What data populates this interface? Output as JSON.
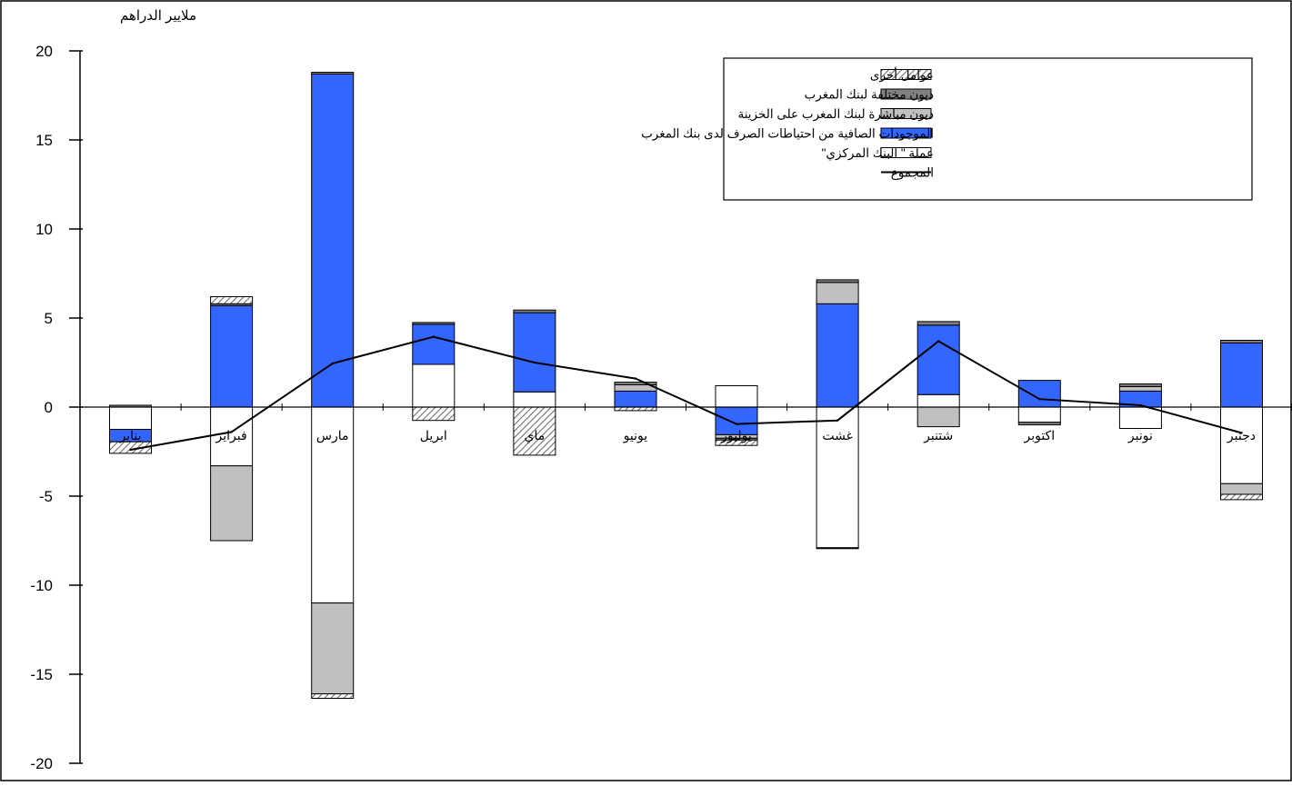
{
  "chart_data": {
    "type": "bar",
    "stacked": true,
    "ylabel": "ملايير الدراهم",
    "ylim": [
      -20,
      20
    ],
    "yticks": [
      20,
      15,
      10,
      5,
      0,
      -5,
      -10,
      -15,
      -20
    ],
    "ytick_labels": [
      "20",
      "15",
      "10",
      "5",
      "0",
      "-5",
      "-10",
      "-15",
      "-20"
    ],
    "categories": [
      "يناير",
      "فبراير",
      "مارس",
      "ابريل",
      "ماي",
      "يونيو",
      "يوليوز",
      "غشت",
      "شتنبر",
      "اكتوبر",
      "نونبر",
      "دجنبر"
    ],
    "series": [
      {
        "name": "عملة \" البنك المركزي\"",
        "kind": "bar",
        "color": "#ffffff",
        "pattern": "none",
        "values": [
          -1.25,
          -3.3,
          -11.0,
          2.4,
          0.85,
          0.0,
          1.2,
          -7.9,
          0.7,
          -0.85,
          -1.2,
          -4.3
        ]
      },
      {
        "name": "الموجودات الصافية من احتياطات الصرف لدى بنك المغرب",
        "kind": "bar",
        "color": "#3366ff",
        "pattern": "none",
        "values": [
          -0.7,
          5.7,
          18.7,
          2.25,
          4.45,
          0.9,
          -1.55,
          5.8,
          3.9,
          1.5,
          0.9,
          3.6
        ]
      },
      {
        "name": "ديون مباشرة لبنك المغرب على الخزينة",
        "kind": "bar",
        "color": "#c0c0c0",
        "pattern": "none",
        "values": [
          0.0,
          -4.2,
          -5.1,
          0.0,
          0.0,
          0.35,
          -0.2,
          1.2,
          -1.1,
          0.0,
          0.25,
          -0.6
        ]
      },
      {
        "name": "ديون مختلفة لبنك المغرب",
        "kind": "bar",
        "color": "#808080",
        "pattern": "none",
        "values": [
          0.1,
          0.1,
          0.1,
          0.1,
          0.15,
          0.15,
          -0.1,
          0.15,
          0.2,
          -0.15,
          0.15,
          0.15
        ]
      },
      {
        "name": "عوامل أخرى",
        "kind": "bar",
        "color": "#ffffff",
        "pattern": "hatch",
        "values": [
          -0.65,
          0.4,
          -0.25,
          -0.75,
          -2.7,
          -0.2,
          -0.3,
          -0.05,
          0.0,
          0.0,
          0.0,
          -0.3
        ]
      },
      {
        "name": "المجموع",
        "kind": "line",
        "color": "#000000",
        "values": [
          -2.4,
          -1.4,
          2.45,
          3.95,
          2.5,
          1.6,
          -0.95,
          -0.75,
          3.7,
          0.45,
          0.1,
          -1.45
        ]
      }
    ],
    "grid": false,
    "legend_position": "top-right",
    "legend_order": [
      "عوامل أخرى",
      "ديون مختلفة لبنك المغرب",
      "ديون مباشرة لبنك المغرب على الخزينة",
      "الموجودات الصافية من احتياطات الصرف لدى بنك المغرب",
      "عملة \" البنك المركزي\"",
      "المجموع"
    ]
  }
}
